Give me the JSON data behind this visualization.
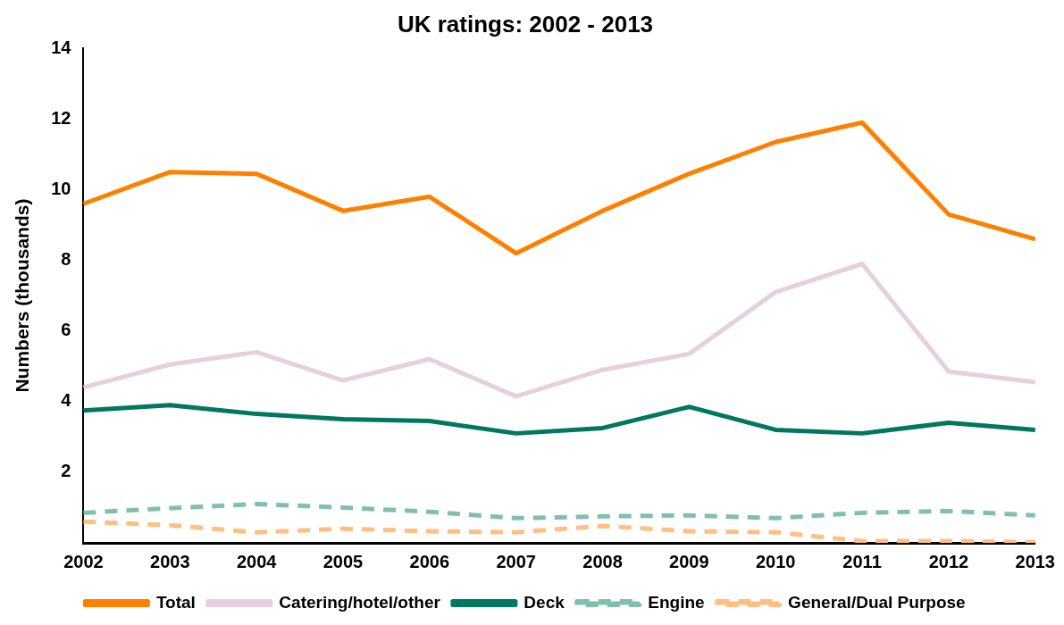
{
  "chart_data": {
    "type": "line",
    "title": "UK ratings: 2002 - 2013",
    "ylabel": "Numbers (thousands)",
    "categories": [
      "2002",
      "2003",
      "2004",
      "2005",
      "2006",
      "2007",
      "2008",
      "2009",
      "2010",
      "2011",
      "2012",
      "2013"
    ],
    "ylim": [
      0,
      14
    ],
    "yticks": [
      2,
      4,
      6,
      8,
      10,
      12,
      14
    ],
    "grid": false,
    "legend": "bottom",
    "marker": "none",
    "series": [
      {
        "name": "Total",
        "color": "#ff8000",
        "line_style": "solid",
        "values": [
          9.6,
          10.5,
          10.45,
          9.4,
          9.8,
          8.2,
          9.4,
          10.45,
          11.35,
          11.9,
          9.3,
          8.6
        ]
      },
      {
        "name": "Catering/hotel/other",
        "color": "#e6d0de",
        "line_style": "solid",
        "values": [
          4.4,
          5.05,
          5.4,
          4.6,
          5.2,
          4.15,
          4.9,
          5.35,
          7.1,
          7.9,
          4.85,
          4.55
        ]
      },
      {
        "name": "Deck",
        "color": "#00775f",
        "line_style": "solid",
        "values": [
          3.75,
          3.9,
          3.65,
          3.5,
          3.45,
          3.1,
          3.25,
          3.85,
          3.2,
          3.1,
          3.4,
          3.2
        ]
      },
      {
        "name": "Engine",
        "color": "#80bfb0",
        "line_style": "dashed",
        "values": [
          0.85,
          0.98,
          1.1,
          1.0,
          0.88,
          0.7,
          0.75,
          0.78,
          0.7,
          0.85,
          0.9,
          0.78
        ]
      },
      {
        "name": "General/Dual Purpose",
        "color": "#ffbf80",
        "line_style": "dashed",
        "values": [
          0.6,
          0.5,
          0.3,
          0.4,
          0.33,
          0.3,
          0.48,
          0.33,
          0.3,
          0.05,
          0.05,
          0.02
        ]
      }
    ]
  }
}
